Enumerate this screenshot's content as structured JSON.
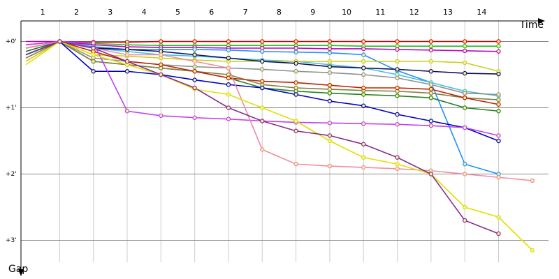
{
  "chart_data": {
    "type": "line",
    "x_label": "Time",
    "y_label": "Gap",
    "x": [
      0,
      1,
      2,
      3,
      4,
      5,
      6,
      7,
      8,
      9,
      10,
      11,
      12,
      13,
      14,
      15
    ],
    "xlim": [
      0,
      15.5
    ],
    "xticks": [
      {
        "value": 0.5,
        "label": "1"
      },
      {
        "value": 1.5,
        "label": "2"
      },
      {
        "value": 2.5,
        "label": "3"
      },
      {
        "value": 3.5,
        "label": "4"
      },
      {
        "value": 4.5,
        "label": "5"
      },
      {
        "value": 5.5,
        "label": "6"
      },
      {
        "value": 6.5,
        "label": "7"
      },
      {
        "value": 7.5,
        "label": "8"
      },
      {
        "value": 8.5,
        "label": "9"
      },
      {
        "value": 9.5,
        "label": "10"
      },
      {
        "value": 10.5,
        "label": "11"
      },
      {
        "value": 11.5,
        "label": "12"
      },
      {
        "value": 12.5,
        "label": "13"
      },
      {
        "value": 13.5,
        "label": "14"
      }
    ],
    "xgrid": [
      1,
      2,
      3,
      4,
      5,
      6,
      7,
      8,
      9,
      10,
      11,
      12,
      13,
      14
    ],
    "ylim": [
      -0.3,
      3.3
    ],
    "yticks": [
      {
        "value": 0,
        "label": "+0'"
      },
      {
        "value": 1,
        "label": "+1'"
      },
      {
        "value": 2,
        "label": "+2'"
      },
      {
        "value": 3,
        "label": "+3'"
      }
    ],
    "y_inverted": true,
    "grid": true,
    "series": [
      {
        "color": "#e00000",
        "values": [
          0.05,
          0,
          0.01,
          0.01,
          0,
          0,
          0,
          0,
          0,
          0,
          0,
          0,
          0,
          0,
          0,
          null
        ]
      },
      {
        "color": "#20c020",
        "values": [
          0.1,
          0,
          0.03,
          0.05,
          0.06,
          0.06,
          0.06,
          0.06,
          0.06,
          0.06,
          0.07,
          0.07,
          0.07,
          0.07,
          0.07,
          null
        ]
      },
      {
        "color": "#c000c0",
        "values": [
          0,
          0,
          0.05,
          0.08,
          0.09,
          0.09,
          0.1,
          0.1,
          0.1,
          0.11,
          0.11,
          0.12,
          0.13,
          0.14,
          0.15,
          null
        ]
      },
      {
        "color": "#1e90ff",
        "values": [
          0.1,
          0,
          0.08,
          0.12,
          0.12,
          0.12,
          0.13,
          0.15,
          0.16,
          0.17,
          0.2,
          0.44,
          0.62,
          1.85,
          2.0,
          null
        ]
      },
      {
        "color": "#40c0e0",
        "values": [
          0.15,
          0,
          0.1,
          0.15,
          0.2,
          0.22,
          0.25,
          0.28,
          0.3,
          0.35,
          0.4,
          0.5,
          0.62,
          0.75,
          0.82,
          null
        ]
      },
      {
        "color": "#909090",
        "values": [
          0.2,
          0,
          0.25,
          0.3,
          0.35,
          0.38,
          0.4,
          0.42,
          0.45,
          0.47,
          0.5,
          0.55,
          0.65,
          0.78,
          0.8,
          null
        ]
      },
      {
        "color": "#c8d020",
        "values": [
          0.3,
          0,
          0.2,
          0.22,
          0.25,
          0.28,
          0.3,
          0.3,
          0.3,
          0.3,
          0.3,
          0.3,
          0.3,
          0.32,
          0.45,
          null
        ]
      },
      {
        "color": "#101060",
        "values": [
          0.2,
          0,
          0.1,
          0.12,
          0.15,
          0.2,
          0.25,
          0.3,
          0.33,
          0.38,
          0.4,
          0.42,
          0.45,
          0.48,
          0.49,
          null
        ]
      },
      {
        "color": "#208020",
        "values": [
          0.15,
          0,
          0.3,
          0.35,
          0.4,
          0.45,
          0.55,
          0.7,
          0.75,
          0.78,
          0.8,
          0.82,
          0.85,
          1.0,
          1.05,
          null
        ]
      },
      {
        "color": "#808040",
        "values": [
          0.25,
          0,
          0.3,
          0.35,
          0.4,
          0.45,
          0.5,
          0.65,
          0.7,
          0.72,
          0.74,
          0.75,
          0.78,
          0.85,
          0.88,
          null
        ]
      },
      {
        "color": "#c02000",
        "values": [
          0.1,
          0,
          0.15,
          0.3,
          0.35,
          0.45,
          0.55,
          0.6,
          0.62,
          0.66,
          0.7,
          0.7,
          0.72,
          0.85,
          0.95,
          null
        ]
      },
      {
        "color": "#0000c0",
        "values": [
          0.2,
          0,
          0.45,
          0.45,
          0.5,
          0.58,
          0.65,
          0.7,
          0.8,
          0.9,
          0.97,
          1.1,
          1.2,
          1.3,
          1.5,
          null
        ]
      },
      {
        "color": "#c040f0",
        "values": [
          0.05,
          0,
          0.02,
          1.05,
          1.12,
          1.15,
          1.17,
          1.2,
          1.22,
          1.23,
          1.24,
          1.25,
          1.27,
          1.3,
          1.42,
          null
        ]
      },
      {
        "color": "#f08ca0",
        "values": [
          0.1,
          0,
          0.1,
          0.2,
          0.2,
          0.3,
          0.4,
          1.63,
          1.85,
          1.88,
          1.9,
          1.92,
          1.95,
          2.0,
          2.05,
          2.1
        ]
      },
      {
        "color": "#e0e000",
        "values": [
          0.35,
          0,
          0.2,
          0.35,
          0.5,
          0.72,
          0.8,
          1.0,
          1.2,
          1.5,
          1.75,
          1.85,
          2.0,
          2.5,
          2.65,
          3.15
        ]
      },
      {
        "color": "#8b2c8b",
        "values": [
          0.2,
          0,
          0.1,
          0.3,
          0.5,
          0.7,
          1.0,
          1.2,
          1.35,
          1.42,
          1.55,
          1.75,
          2.0,
          2.7,
          2.9,
          null
        ]
      }
    ]
  }
}
